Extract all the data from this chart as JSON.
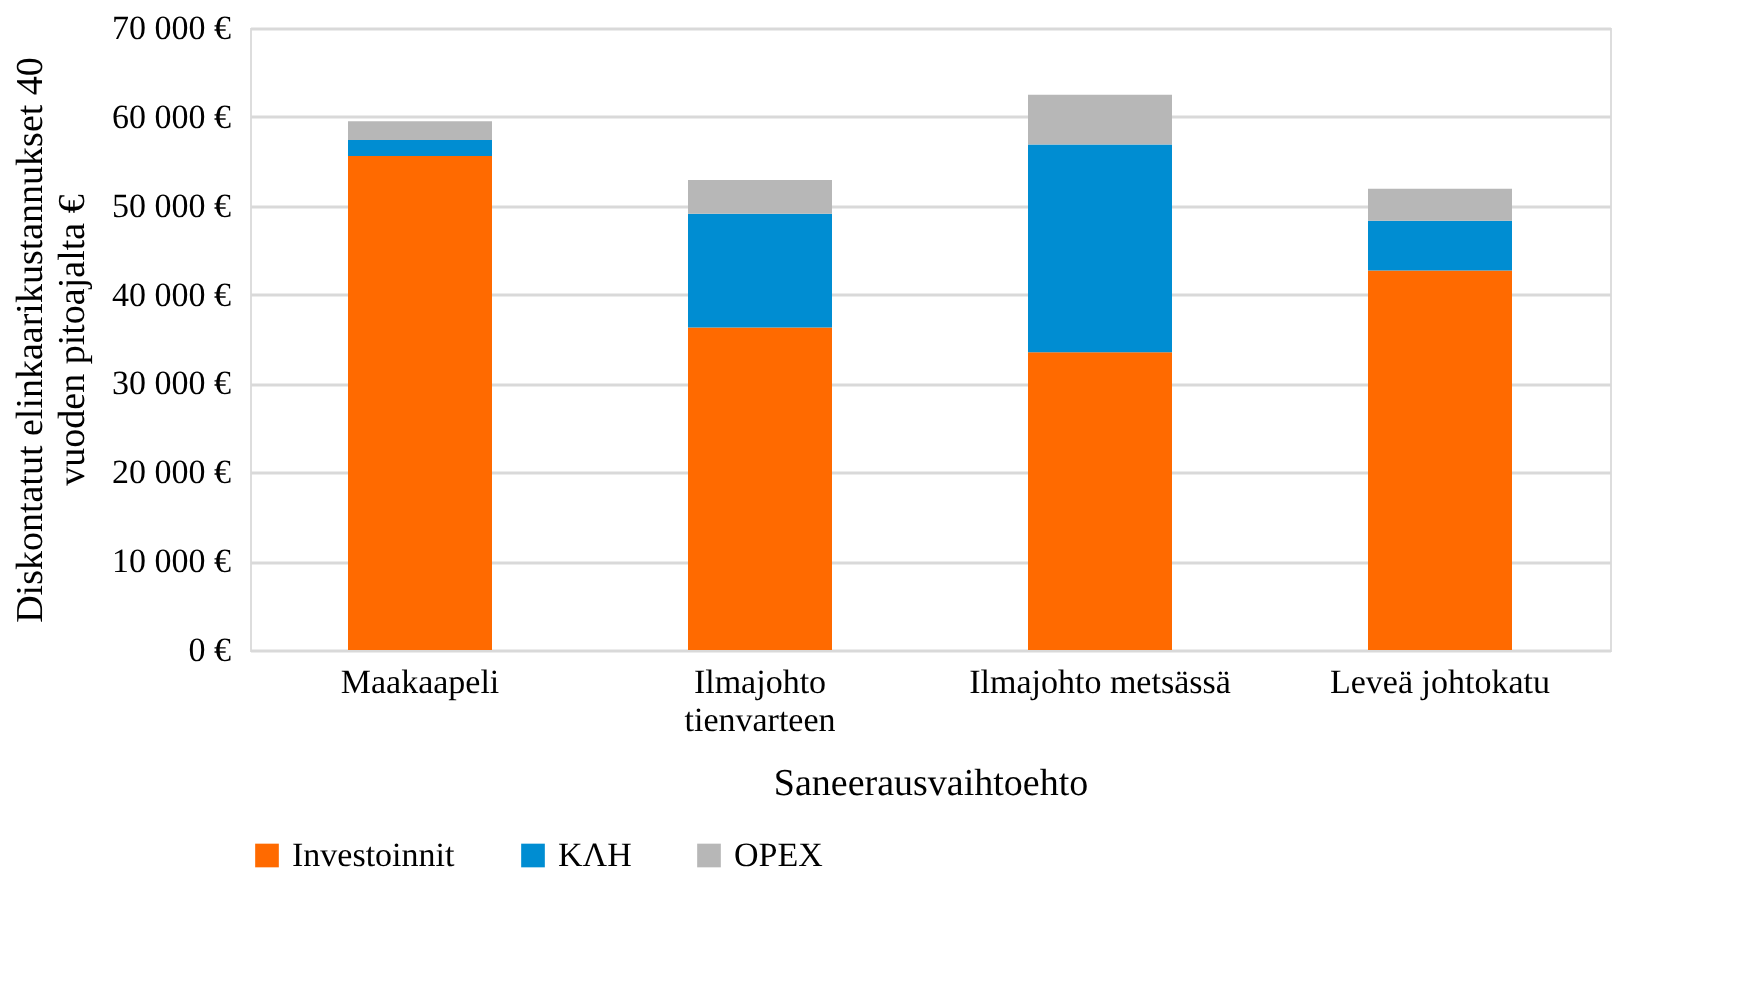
{
  "chart_data": {
    "type": "bar",
    "stacked": true,
    "xlabel": "Saneerausvaihtoehto",
    "ylabel": "Diskontatut elinkaarikustannukset 40\nvuoden pitoajalta €",
    "categories": [
      "Maakaapeli",
      "Ilmajohto\ntienvarteen",
      "Ilmajohto metsässä",
      "Leveä johtokatu"
    ],
    "series": [
      {
        "name": "Investoinnit",
        "color": "#ff6a00",
        "values": [
          55600,
          36300,
          33500,
          42700
        ]
      },
      {
        "name": "KΛH",
        "color": "#008dd2",
        "values": [
          1800,
          12800,
          23400,
          5600
        ]
      },
      {
        "name": "OPEX",
        "color": "#b7b7b7",
        "values": [
          2100,
          3800,
          5600,
          3600
        ]
      }
    ],
    "ylim": [
      0,
      70000
    ],
    "yticks": [
      {
        "value": 0,
        "label": "0 €"
      },
      {
        "value": 10000,
        "label": "10 000 €"
      },
      {
        "value": 20000,
        "label": "20 000 €"
      },
      {
        "value": 30000,
        "label": "30 000 €"
      },
      {
        "value": 40000,
        "label": "40 000 €"
      },
      {
        "value": 50000,
        "label": "50 000 €"
      },
      {
        "value": 60000,
        "label": "60 000 €"
      },
      {
        "value": 70000,
        "label": "70 000 €"
      }
    ],
    "grid": "y",
    "legend": "bottom"
  }
}
